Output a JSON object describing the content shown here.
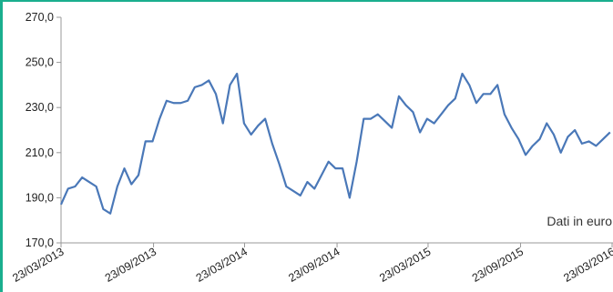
{
  "chart_data": {
    "type": "line",
    "annotation": "Dati in euro",
    "x": [
      "23/03/2013",
      "06/04/2013",
      "20/04/2013",
      "04/05/2013",
      "18/05/2013",
      "01/06/2013",
      "15/06/2013",
      "29/06/2013",
      "13/07/2013",
      "27/07/2013",
      "10/08/2013",
      "24/08/2013",
      "07/09/2013",
      "21/09/2013",
      "05/10/2013",
      "19/10/2013",
      "02/11/2013",
      "16/11/2013",
      "30/11/2013",
      "14/12/2013",
      "28/12/2013",
      "11/01/2014",
      "25/01/2014",
      "08/02/2014",
      "22/02/2014",
      "08/03/2014",
      "22/03/2014",
      "05/04/2014",
      "19/04/2014",
      "03/05/2014",
      "17/05/2014",
      "31/05/2014",
      "14/06/2014",
      "28/06/2014",
      "12/07/2014",
      "26/07/2014",
      "09/08/2014",
      "23/08/2014",
      "06/09/2014",
      "20/09/2014",
      "04/10/2014",
      "18/10/2014",
      "01/11/2014",
      "15/11/2014",
      "29/11/2014",
      "13/12/2014",
      "27/12/2014",
      "10/01/2015",
      "24/01/2015",
      "07/02/2015",
      "21/02/2015",
      "07/03/2015",
      "21/03/2015",
      "04/04/2015",
      "18/04/2015",
      "02/05/2015",
      "16/05/2015",
      "30/05/2015",
      "13/06/2015",
      "27/06/2015",
      "11/07/2015",
      "25/07/2015",
      "08/08/2015",
      "22/08/2015",
      "05/09/2015",
      "19/09/2015",
      "03/10/2015",
      "17/10/2015",
      "31/10/2015",
      "14/11/2015",
      "28/11/2015",
      "12/12/2015",
      "26/12/2015",
      "09/01/2016",
      "23/01/2016",
      "06/02/2016",
      "20/02/2016",
      "05/03/2016",
      "19/03/2016"
    ],
    "series": [
      {
        "color": "#4a78b8",
        "values": [
          187,
          194,
          195,
          199,
          197,
          195,
          185,
          183,
          195,
          203,
          196,
          200,
          215,
          215,
          225,
          233,
          232,
          232,
          233,
          239,
          240,
          242,
          236,
          223,
          240,
          245,
          223,
          218,
          222,
          225,
          214,
          205,
          195,
          193,
          191,
          197,
          194,
          200,
          206,
          203,
          203,
          190,
          206,
          225,
          225,
          227,
          224,
          221,
          235,
          231,
          228,
          219,
          225,
          223,
          227,
          231,
          234,
          245,
          240,
          232,
          236,
          236,
          240,
          227,
          221,
          216,
          209,
          213,
          216,
          223,
          218,
          210,
          217,
          220,
          214,
          215,
          213,
          216,
          219
        ]
      }
    ],
    "xlim": [
      "23/03/2013",
      "23/03/2016"
    ],
    "xticks": [
      "23/03/2013",
      "23/09/2013",
      "23/03/2014",
      "23/09/2014",
      "23/03/2015",
      "23/09/2015",
      "23/03/2016"
    ],
    "ylim": [
      170,
      270
    ],
    "yticks": [
      {
        "value": 170,
        "label": "170,0"
      },
      {
        "value": 190,
        "label": "190,0"
      },
      {
        "value": 210,
        "label": "210,0"
      },
      {
        "value": 230,
        "label": "230,0"
      },
      {
        "value": 250,
        "label": "250,0"
      },
      {
        "value": 270,
        "label": "270,0"
      }
    ]
  }
}
